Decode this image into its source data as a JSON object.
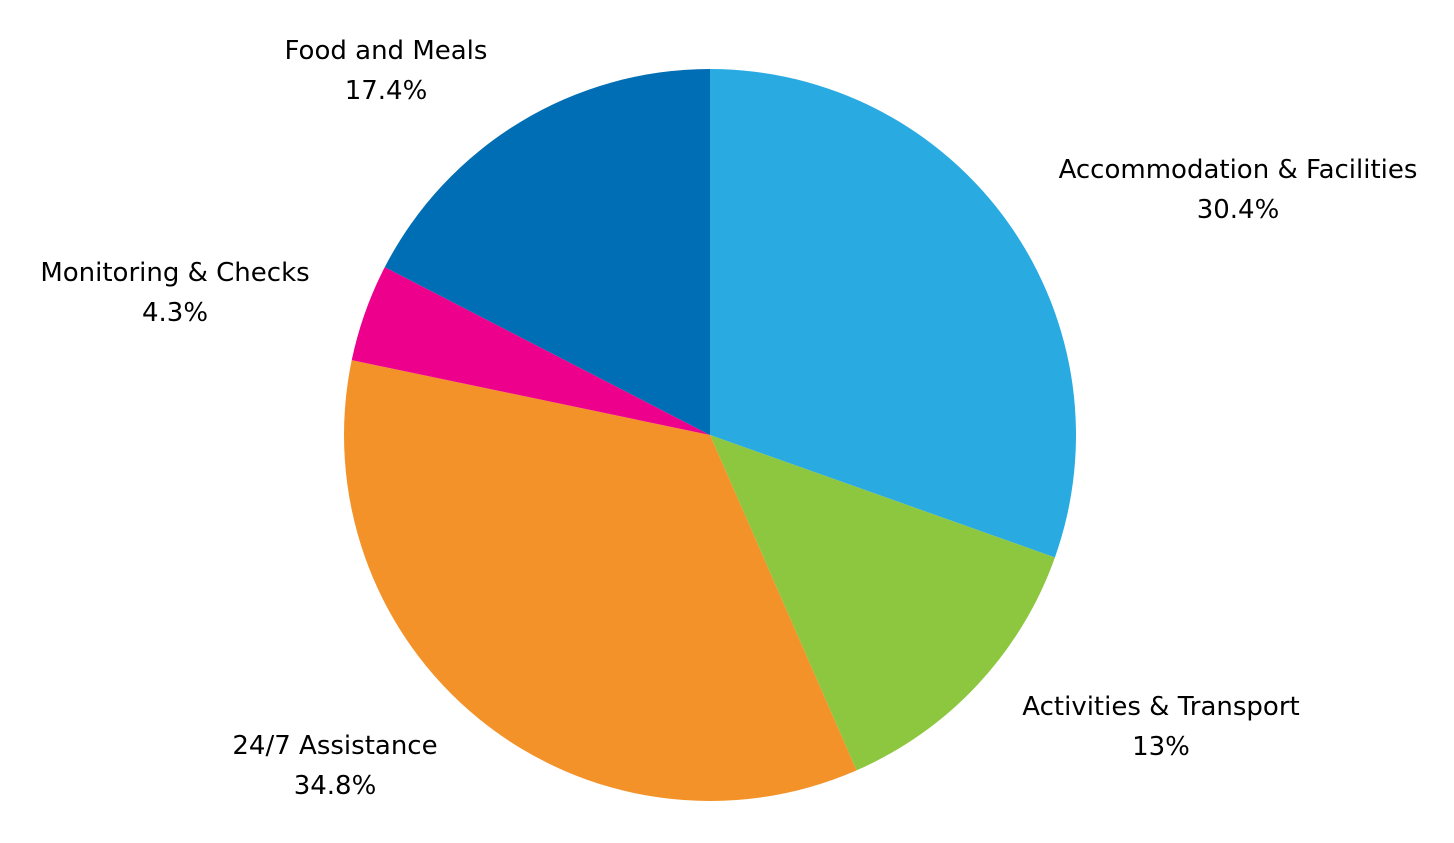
{
  "chart_data": {
    "type": "pie",
    "title": "",
    "slices": [
      {
        "label": "Accommodation & Facilities",
        "value": 30.4,
        "value_label": "30.4%",
        "color": "#29ABE2"
      },
      {
        "label": "Activities & Transport",
        "value": 13,
        "value_label": "13%",
        "color": "#8DC63F"
      },
      {
        "label": "24/7 Assistance",
        "value": 34.8,
        "value_label": "34.8%",
        "color": "#F39229"
      },
      {
        "label": "Monitoring & Checks",
        "value": 4.3,
        "value_label": "4.3%",
        "color": "#EC008C"
      },
      {
        "label": "Food and Meals",
        "value": 17.4,
        "value_label": "17.4%",
        "color": "#006EB5"
      }
    ],
    "start_angle": "12 o'clock",
    "direction": "clockwise",
    "legend": "none",
    "data_labels": "outside"
  }
}
